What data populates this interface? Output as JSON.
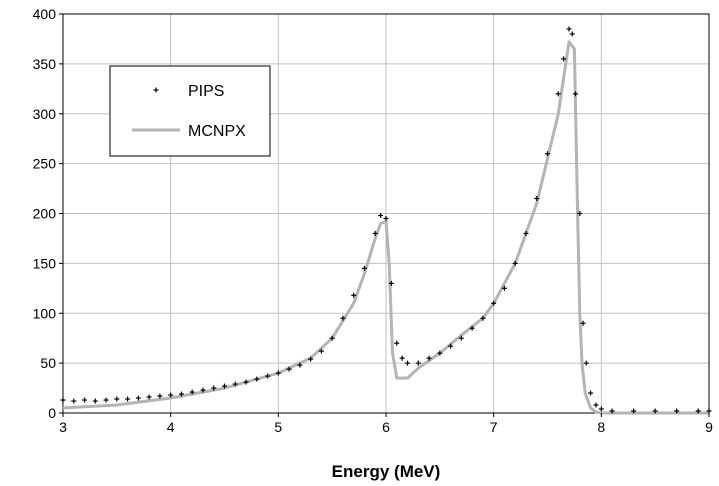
{
  "chart_data": {
    "type": "scatter",
    "title": "",
    "xlabel": "Energy (MeV)",
    "ylabel": "",
    "xlim": [
      3,
      9
    ],
    "ylim": [
      0,
      400
    ],
    "x_ticks": [
      3,
      4,
      5,
      6,
      7,
      8,
      9
    ],
    "y_ticks": [
      0,
      50,
      100,
      150,
      200,
      250,
      300,
      350,
      400
    ],
    "grid": true,
    "legend_position": "top-left",
    "colors": {
      "pips": "#000000",
      "mcnpx": "#b4b4b4"
    },
    "series": [
      {
        "name": "PIPS",
        "marker": "plus",
        "points": [
          [
            3.0,
            13
          ],
          [
            3.1,
            12
          ],
          [
            3.2,
            13
          ],
          [
            3.3,
            12
          ],
          [
            3.4,
            13
          ],
          [
            3.5,
            14
          ],
          [
            3.6,
            14
          ],
          [
            3.7,
            15
          ],
          [
            3.8,
            16
          ],
          [
            3.9,
            17
          ],
          [
            4.0,
            18
          ],
          [
            4.1,
            19
          ],
          [
            4.2,
            21
          ],
          [
            4.3,
            23
          ],
          [
            4.4,
            25
          ],
          [
            4.5,
            27
          ],
          [
            4.6,
            29
          ],
          [
            4.7,
            31
          ],
          [
            4.8,
            34
          ],
          [
            4.9,
            37
          ],
          [
            5.0,
            40
          ],
          [
            5.1,
            44
          ],
          [
            5.2,
            48
          ],
          [
            5.3,
            54
          ],
          [
            5.4,
            62
          ],
          [
            5.5,
            75
          ],
          [
            5.6,
            95
          ],
          [
            5.7,
            118
          ],
          [
            5.8,
            145
          ],
          [
            5.9,
            180
          ],
          [
            5.95,
            198
          ],
          [
            6.0,
            195
          ],
          [
            6.05,
            130
          ],
          [
            6.1,
            70
          ],
          [
            6.15,
            55
          ],
          [
            6.2,
            50
          ],
          [
            6.3,
            50
          ],
          [
            6.4,
            55
          ],
          [
            6.5,
            60
          ],
          [
            6.6,
            67
          ],
          [
            6.7,
            75
          ],
          [
            6.8,
            85
          ],
          [
            6.9,
            95
          ],
          [
            7.0,
            110
          ],
          [
            7.1,
            125
          ],
          [
            7.2,
            150
          ],
          [
            7.3,
            180
          ],
          [
            7.4,
            215
          ],
          [
            7.5,
            260
          ],
          [
            7.6,
            320
          ],
          [
            7.65,
            355
          ],
          [
            7.7,
            385
          ],
          [
            7.73,
            380
          ],
          [
            7.76,
            320
          ],
          [
            7.8,
            200
          ],
          [
            7.83,
            90
          ],
          [
            7.86,
            50
          ],
          [
            7.9,
            20
          ],
          [
            7.95,
            8
          ],
          [
            8.0,
            4
          ],
          [
            8.1,
            2
          ],
          [
            8.3,
            2
          ],
          [
            8.5,
            2
          ],
          [
            8.7,
            2
          ],
          [
            8.9,
            2
          ],
          [
            9.0,
            2
          ]
        ]
      },
      {
        "name": "MCNPX",
        "style": "line",
        "points": [
          [
            3.0,
            5
          ],
          [
            3.5,
            8
          ],
          [
            4.0,
            15
          ],
          [
            4.5,
            25
          ],
          [
            5.0,
            40
          ],
          [
            5.3,
            55
          ],
          [
            5.5,
            75
          ],
          [
            5.7,
            110
          ],
          [
            5.8,
            140
          ],
          [
            5.9,
            175
          ],
          [
            5.95,
            190
          ],
          [
            6.0,
            192
          ],
          [
            6.03,
            150
          ],
          [
            6.06,
            60
          ],
          [
            6.1,
            35
          ],
          [
            6.2,
            35
          ],
          [
            6.3,
            45
          ],
          [
            6.5,
            60
          ],
          [
            6.7,
            78
          ],
          [
            6.9,
            95
          ],
          [
            7.0,
            110
          ],
          [
            7.2,
            150
          ],
          [
            7.4,
            210
          ],
          [
            7.6,
            300
          ],
          [
            7.7,
            372
          ],
          [
            7.75,
            365
          ],
          [
            7.78,
            200
          ],
          [
            7.8,
            100
          ],
          [
            7.82,
            50
          ],
          [
            7.85,
            20
          ],
          [
            7.9,
            5
          ],
          [
            7.95,
            1
          ],
          [
            8.0,
            0
          ],
          [
            9.0,
            0
          ]
        ]
      }
    ]
  }
}
